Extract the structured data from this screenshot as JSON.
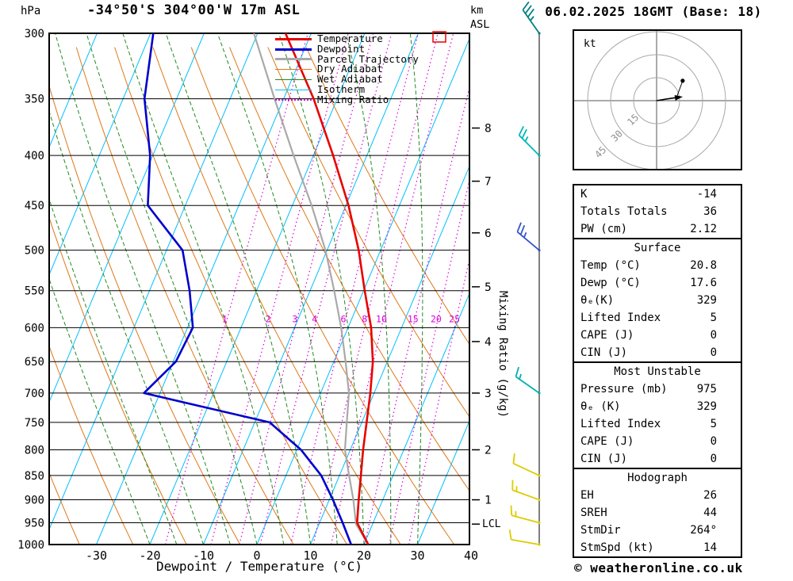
{
  "header": {
    "pressure_unit": "hPa",
    "title": "-34°50'S 304°00'W 17m ASL",
    "altitude_unit_km": "km",
    "altitude_unit_asl": "ASL",
    "datetime": "06.02.2025 18GMT (Base: 18)"
  },
  "legend": {
    "items": [
      {
        "label": "Temperature",
        "color": "#e80000",
        "style": "solid",
        "width": 3
      },
      {
        "label": "Dewpoint",
        "color": "#0000cd",
        "style": "solid",
        "width": 3
      },
      {
        "label": "Parcel Trajectory",
        "color": "#a9a9a9",
        "style": "solid",
        "width": 3
      },
      {
        "label": "Dry Adiabat",
        "color": "#de7818",
        "style": "solid",
        "width": 1.5
      },
      {
        "label": "Wet Adiabat",
        "color": "#228b22",
        "style": "solid",
        "width": 1.5
      },
      {
        "label": "Isotherm",
        "color": "#00bfff",
        "style": "solid",
        "width": 1.5
      },
      {
        "label": "Mixing Ratio",
        "color": "#dd00dd",
        "style": "dotted",
        "width": 2
      }
    ]
  },
  "chart_data": {
    "type": "line",
    "title": "Skew-T log-P sounding",
    "xlabel": "Dewpoint / Temperature (°C)",
    "left_axis_label": "hPa",
    "right_axis_label": "Mixing Ratio (g/kg)",
    "x_ticks": [
      -30,
      -20,
      -10,
      0,
      10,
      20,
      30,
      40
    ],
    "pressure_ticks": [
      300,
      350,
      400,
      450,
      500,
      550,
      600,
      650,
      700,
      750,
      800,
      850,
      900,
      950,
      1000
    ],
    "pressure_range": [
      300,
      1000
    ],
    "isotherms": {
      "values": [
        -100,
        -90,
        -80,
        -70,
        -60,
        -50,
        -40,
        -30,
        -20,
        -10,
        0,
        10,
        20,
        30,
        40
      ],
      "color": "#00bfff"
    },
    "dry_adiabats": {
      "theta_K": [
        230,
        240,
        250,
        260,
        270,
        280,
        290,
        300,
        310,
        320,
        330,
        340
      ],
      "color": "#de7818"
    },
    "wet_adiabats": {
      "start_temps_C": [
        -20,
        -15,
        -10,
        -5,
        0,
        5,
        10,
        15,
        20,
        25,
        30
      ],
      "color": "#228b22"
    },
    "mixing_ratio": {
      "values": [
        1,
        2,
        3,
        4,
        6,
        8,
        10,
        15,
        20,
        25
      ],
      "label_pressure": 600,
      "color": "#dd00dd"
    },
    "km_ticks": [
      {
        "km": 1,
        "pressure": 900
      },
      {
        "km": 2,
        "pressure": 800
      },
      {
        "km": 3,
        "pressure": 700
      },
      {
        "km": 4,
        "pressure": 620
      },
      {
        "km": 5,
        "pressure": 545
      },
      {
        "km": 6,
        "pressure": 480
      },
      {
        "km": 7,
        "pressure": 425
      },
      {
        "km": 8,
        "pressure": 375
      }
    ],
    "lcl": {
      "label": "LCL",
      "pressure": 953
    },
    "extra_red_box": {
      "x": 546,
      "y": 40,
      "width": 16,
      "height": 13,
      "color": "#e80000"
    },
    "series": [
      {
        "id": "temperature",
        "name": "Temperature",
        "color": "#e80000",
        "width": 2.6,
        "points": [
          [
            1000,
            20.8
          ],
          [
            950,
            17.0
          ],
          [
            900,
            15.5
          ],
          [
            850,
            14.0
          ],
          [
            800,
            12.4
          ],
          [
            750,
            10.9
          ],
          [
            700,
            9.3
          ],
          [
            650,
            7.3
          ],
          [
            600,
            4.3
          ],
          [
            550,
            0.2
          ],
          [
            500,
            -4.1
          ],
          [
            450,
            -9.5
          ],
          [
            400,
            -16.3
          ],
          [
            350,
            -24.4
          ],
          [
            300,
            -34.8
          ]
        ]
      },
      {
        "id": "dewpoint",
        "name": "Dewpoint",
        "color": "#0000cd",
        "width": 2.6,
        "points": [
          [
            1000,
            17.6
          ],
          [
            950,
            14.3
          ],
          [
            900,
            10.7
          ],
          [
            850,
            6.6
          ],
          [
            800,
            0.8
          ],
          [
            750,
            -7.2
          ],
          [
            700,
            -33.0
          ],
          [
            650,
            -29.5
          ],
          [
            600,
            -29.0
          ],
          [
            550,
            -32.5
          ],
          [
            500,
            -37.0
          ],
          [
            450,
            -47.0
          ],
          [
            400,
            -50.5
          ],
          [
            350,
            -56.0
          ],
          [
            300,
            -59.5
          ]
        ]
      },
      {
        "id": "parcel-trajectory",
        "name": "Parcel Trajectory",
        "color": "#a9a9a9",
        "width": 2.2,
        "points": [
          [
            1000,
            20.8
          ],
          [
            953,
            16.9
          ],
          [
            900,
            14.5
          ],
          [
            850,
            11.8
          ],
          [
            800,
            9.0
          ],
          [
            750,
            7.2
          ],
          [
            700,
            5.3
          ],
          [
            650,
            2.2
          ],
          [
            600,
            -1.3
          ],
          [
            550,
            -5.5
          ],
          [
            500,
            -10.3
          ],
          [
            450,
            -16.4
          ],
          [
            400,
            -23.7
          ],
          [
            350,
            -31.7
          ],
          [
            300,
            -40.7
          ]
        ]
      }
    ],
    "wind_barbs": [
      {
        "pressure": 300,
        "dir_deg": 325,
        "speed_kt": 35,
        "color": "#008080"
      },
      {
        "pressure": 400,
        "dir_deg": 315,
        "speed_kt": 25,
        "color": "#00b8b8"
      },
      {
        "pressure": 500,
        "dir_deg": 310,
        "speed_kt": 25,
        "color": "#3355cc"
      },
      {
        "pressure": 700,
        "dir_deg": 305,
        "speed_kt": 15,
        "color": "#00b0b0"
      },
      {
        "pressure": 850,
        "dir_deg": 295,
        "speed_kt": 10,
        "color": "#ddcc00"
      },
      {
        "pressure": 900,
        "dir_deg": 290,
        "speed_kt": 15,
        "color": "#ddcc00"
      },
      {
        "pressure": 950,
        "dir_deg": 285,
        "speed_kt": 15,
        "color": "#ddcc00"
      },
      {
        "pressure": 1000,
        "dir_deg": 280,
        "speed_kt": 10,
        "color": "#ddcc00"
      }
    ]
  },
  "hodograph": {
    "unit_label": "kt",
    "rings_kt": [
      15,
      30,
      45
    ],
    "ring_labels": [
      "15",
      "30",
      "45"
    ],
    "trace_kt": [
      [
        0,
        0
      ],
      [
        6,
        1
      ],
      [
        13,
        2
      ]
    ],
    "aux_point_kt": [
      17,
      13
    ],
    "storm_motion": {
      "dir_deg": 264,
      "speed_kt": 14
    }
  },
  "tables": {
    "indices": {
      "rows": [
        {
          "label": "K",
          "value": "-14"
        },
        {
          "label": "Totals Totals",
          "value": "36"
        },
        {
          "label": "PW (cm)",
          "value": "2.12"
        }
      ]
    },
    "surface": {
      "header": "Surface",
      "rows": [
        {
          "label": "Temp (°C)",
          "value": "20.8"
        },
        {
          "label": "Dewp (°C)",
          "value": "17.6"
        },
        {
          "label": "θₑ(K)",
          "value": "329"
        },
        {
          "label": "Lifted Index",
          "value": "5"
        },
        {
          "label": "CAPE (J)",
          "value": "0"
        },
        {
          "label": "CIN (J)",
          "value": "0"
        }
      ]
    },
    "most_unstable": {
      "header": "Most Unstable",
      "rows": [
        {
          "label": "Pressure (mb)",
          "value": "975"
        },
        {
          "label": "θₑ (K)",
          "value": "329"
        },
        {
          "label": "Lifted Index",
          "value": "5"
        },
        {
          "label": "CAPE (J)",
          "value": "0"
        },
        {
          "label": "CIN (J)",
          "value": "0"
        }
      ]
    },
    "hodograph": {
      "header": "Hodograph",
      "rows": [
        {
          "label": "EH",
          "value": "26"
        },
        {
          "label": "SREH",
          "value": "44"
        },
        {
          "label": "StmDir",
          "value": "264°"
        },
        {
          "label": "StmSpd (kt)",
          "value": "14"
        }
      ]
    }
  },
  "footer": {
    "copyright": "© weatheronline.co.uk"
  }
}
